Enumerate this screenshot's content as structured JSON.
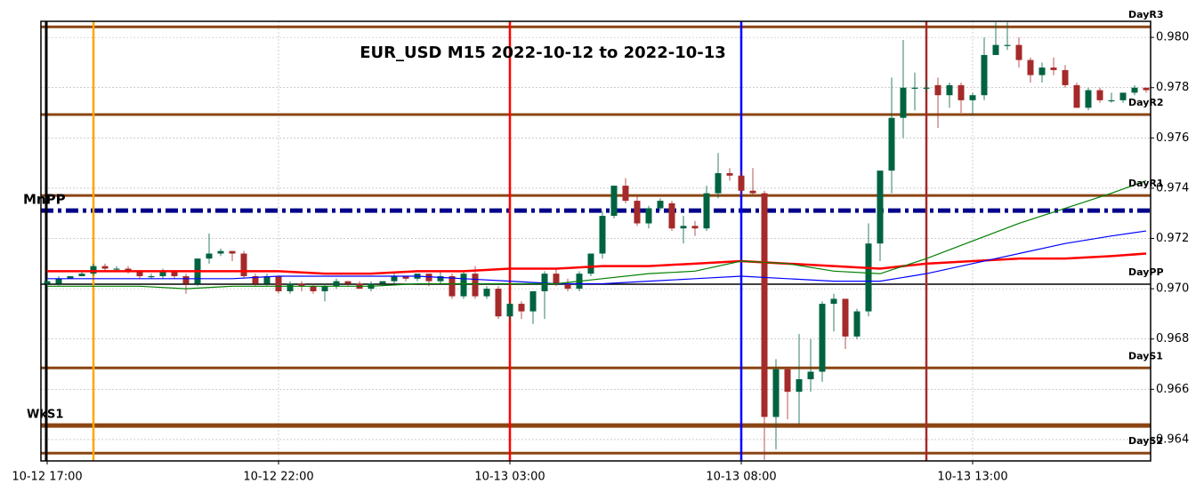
{
  "chart_data": {
    "type": "candlestick",
    "title": "EUR_USD M15 2022-10-12 to 2022-10-13",
    "x": [
      "10-12 17:00",
      "10-12 17:15",
      "10-12 17:30",
      "10-12 17:45",
      "10-12 18:00",
      "10-12 18:15",
      "10-12 18:30",
      "10-12 18:45",
      "10-12 19:00",
      "10-12 19:15",
      "10-12 19:30",
      "10-12 19:45",
      "10-12 20:00",
      "10-12 20:15",
      "10-12 20:30",
      "10-12 20:45",
      "10-12 21:00",
      "10-12 21:15",
      "10-12 21:30",
      "10-12 21:45",
      "10-12 22:00",
      "10-12 22:15",
      "10-12 22:30",
      "10-12 22:45",
      "10-12 23:00",
      "10-12 23:15",
      "10-12 23:30",
      "10-12 23:45",
      "10-13 00:00",
      "10-13 00:15",
      "10-13 00:30",
      "10-13 00:45",
      "10-13 01:00",
      "10-13 01:15",
      "10-13 01:30",
      "10-13 01:45",
      "10-13 02:00",
      "10-13 02:15",
      "10-13 02:30",
      "10-13 02:45",
      "10-13 03:00",
      "10-13 03:15",
      "10-13 03:30",
      "10-13 03:45",
      "10-13 04:00",
      "10-13 04:15",
      "10-13 04:30",
      "10-13 04:45",
      "10-13 05:00",
      "10-13 05:15",
      "10-13 05:30",
      "10-13 05:45",
      "10-13 06:00",
      "10-13 06:15",
      "10-13 06:30",
      "10-13 06:45",
      "10-13 07:00",
      "10-13 07:15",
      "10-13 07:30",
      "10-13 07:45",
      "10-13 08:00",
      "10-13 08:15",
      "10-13 08:30",
      "10-13 08:45",
      "10-13 09:00",
      "10-13 09:15",
      "10-13 09:30",
      "10-13 09:45",
      "10-13 10:00",
      "10-13 10:15",
      "10-13 10:30",
      "10-13 10:45",
      "10-13 11:00",
      "10-13 11:15",
      "10-13 11:30",
      "10-13 11:45",
      "10-13 12:00",
      "10-13 12:15",
      "10-13 12:30",
      "10-13 12:45",
      "10-13 13:00",
      "10-13 13:15",
      "10-13 13:30",
      "10-13 13:45",
      "10-13 14:00",
      "10-13 14:15",
      "10-13 14:30",
      "10-13 14:45",
      "10-13 15:00",
      "10-13 15:15",
      "10-13 15:30",
      "10-13 15:45",
      "10-13 16:00",
      "10-13 16:15",
      "10-13 16:30",
      "10-13 16:45"
    ],
    "open": [
      0.9702,
      0.9702,
      0.9704,
      0.9705,
      0.9706,
      0.9709,
      0.9708,
      0.9708,
      0.9707,
      0.9705,
      0.9705,
      0.9707,
      0.9705,
      0.9702,
      0.9712,
      0.9714,
      0.9715,
      0.9714,
      0.9705,
      0.9702,
      0.9705,
      0.9699,
      0.9702,
      0.9701,
      0.9699,
      0.9701,
      0.9703,
      0.9702,
      0.97,
      0.9702,
      0.9703,
      0.9705,
      0.9704,
      0.9706,
      0.9703,
      0.9705,
      0.9697,
      0.9706,
      0.9697,
      0.97,
      0.9689,
      0.9694,
      0.9691,
      0.9699,
      0.9706,
      0.9702,
      0.97,
      0.9706,
      0.9714,
      0.9729,
      0.9741,
      0.9735,
      0.9726,
      0.9732,
      0.9734,
      0.9724,
      0.9725,
      0.9724,
      0.9738,
      0.9746,
      0.9745,
      0.9739,
      0.9738,
      0.9649,
      0.9668,
      0.9659,
      0.9664,
      0.9667,
      0.9694,
      0.9696,
      0.9681,
      0.9691,
      0.9718,
      0.9747,
      0.9768,
      0.978,
      0.978,
      0.9781,
      0.9777,
      0.9781,
      0.9775,
      0.9777,
      0.9793,
      0.9797,
      0.9797,
      0.9791,
      0.9785,
      0.9788,
      0.9787,
      0.9781,
      0.9772,
      0.9779,
      0.9775,
      0.9775,
      0.9778,
      0.978
    ],
    "high": [
      0.9704,
      0.9705,
      0.9705,
      0.9707,
      0.971,
      0.971,
      0.9709,
      0.9709,
      0.9707,
      0.9706,
      0.9708,
      0.9707,
      0.9706,
      0.9712,
      0.9722,
      0.9716,
      0.9715,
      0.9715,
      0.9706,
      0.9706,
      0.9705,
      0.9703,
      0.9703,
      0.9702,
      0.9702,
      0.9704,
      0.9703,
      0.9703,
      0.9703,
      0.9703,
      0.9706,
      0.9705,
      0.9706,
      0.9706,
      0.9707,
      0.9706,
      0.9707,
      0.9709,
      0.9701,
      0.9701,
      0.9695,
      0.9695,
      0.9699,
      0.9707,
      0.9708,
      0.9704,
      0.9707,
      0.9714,
      0.9731,
      0.9741,
      0.9744,
      0.9737,
      0.9733,
      0.9736,
      0.9735,
      0.9729,
      0.9727,
      0.9741,
      0.9754,
      0.9748,
      0.9747,
      0.9748,
      0.9739,
      0.9672,
      0.9669,
      0.9682,
      0.968,
      0.9695,
      0.9698,
      0.9696,
      0.9692,
      0.9726,
      0.9747,
      0.9784,
      0.9799,
      0.9786,
      0.9783,
      0.9784,
      0.9782,
      0.9782,
      0.9778,
      0.98,
      0.9806,
      0.9806,
      0.98,
      0.9792,
      0.979,
      0.9792,
      0.9789,
      0.9782,
      0.978,
      0.978,
      0.9778,
      0.9778,
      0.9781,
      0.978
    ],
    "low": [
      0.9701,
      0.9701,
      0.9704,
      0.9705,
      0.9705,
      0.9707,
      0.9707,
      0.9706,
      0.9704,
      0.9704,
      0.9704,
      0.9704,
      0.9698,
      0.9701,
      0.971,
      0.9713,
      0.9711,
      0.9704,
      0.9701,
      0.9701,
      0.9698,
      0.9698,
      0.9699,
      0.9698,
      0.9695,
      0.97,
      0.9701,
      0.97,
      0.9699,
      0.9701,
      0.9702,
      0.9703,
      0.9703,
      0.9701,
      0.9702,
      0.9696,
      0.9696,
      0.9696,
      0.9696,
      0.9688,
      0.9687,
      0.9688,
      0.9686,
      0.9688,
      0.9701,
      0.9699,
      0.9699,
      0.9705,
      0.9712,
      0.9728,
      0.9734,
      0.9725,
      0.9724,
      0.9731,
      0.9723,
      0.9718,
      0.9721,
      0.9723,
      0.9736,
      0.9743,
      0.9737,
      0.9737,
      0.9632,
      0.9636,
      0.9648,
      0.9646,
      0.9659,
      0.9663,
      0.9683,
      0.9676,
      0.968,
      0.9689,
      0.9711,
      0.9738,
      0.976,
      0.9771,
      0.9778,
      0.9764,
      0.9772,
      0.977,
      0.9769,
      0.9775,
      0.9793,
      0.9795,
      0.9788,
      0.9782,
      0.9782,
      0.9785,
      0.978,
      0.9772,
      0.9771,
      0.9774,
      0.9774,
      0.9774,
      0.9777,
      0.9778
    ],
    "close": [
      0.9703,
      0.9704,
      0.9705,
      0.9706,
      0.9709,
      0.9708,
      0.9708,
      0.9707,
      0.9705,
      0.9705,
      0.9707,
      0.9705,
      0.9702,
      0.9712,
      0.9714,
      0.9715,
      0.9714,
      0.9705,
      0.9702,
      0.9705,
      0.9699,
      0.9702,
      0.9701,
      0.9699,
      0.9701,
      0.9703,
      0.9702,
      0.97,
      0.9702,
      0.9703,
      0.9705,
      0.9704,
      0.9706,
      0.9703,
      0.9705,
      0.9697,
      0.9706,
      0.9697,
      0.97,
      0.9689,
      0.9694,
      0.9691,
      0.9699,
      0.9706,
      0.9702,
      0.97,
      0.9706,
      0.9714,
      0.9729,
      0.9741,
      0.9735,
      0.9726,
      0.9732,
      0.9735,
      0.9724,
      0.9725,
      0.9724,
      0.9738,
      0.9746,
      0.9745,
      0.9739,
      0.9738,
      0.9649,
      0.9668,
      0.9659,
      0.9664,
      0.9667,
      0.9694,
      0.9696,
      0.9681,
      0.9691,
      0.9718,
      0.9747,
      0.9768,
      0.978,
      0.978,
      0.978,
      0.9777,
      0.9781,
      0.9775,
      0.9777,
      0.9793,
      0.9797,
      0.9797,
      0.9791,
      0.9785,
      0.9788,
      0.9787,
      0.9781,
      0.9772,
      0.9779,
      0.9775,
      0.9775,
      0.9778,
      0.978,
      0.9779
    ],
    "up_color": "#006340",
    "down_color": "#a52a2a",
    "lines": [
      {
        "color": "#ff0000",
        "width": 2.5,
        "x": [
          "10-12 17:00",
          "10-12 18:00",
          "10-12 19:00",
          "10-12 20:00",
          "10-12 21:00",
          "10-12 22:00",
          "10-12 23:00",
          "10-13 00:00",
          "10-13 01:00",
          "10-13 02:00",
          "10-13 03:00",
          "10-13 04:00",
          "10-13 05:00",
          "10-13 06:00",
          "10-13 07:00",
          "10-13 08:00",
          "10-13 09:00",
          "10-13 10:00",
          "10-13 11:00",
          "10-13 12:00",
          "10-13 13:00",
          "10-13 14:00",
          "10-13 15:00",
          "10-13 16:00",
          "10-13 16:45"
        ],
        "values": [
          0.9707,
          0.9707,
          0.9707,
          0.9707,
          0.9707,
          0.9707,
          0.9706,
          0.9706,
          0.9707,
          0.9707,
          0.9708,
          0.9708,
          0.9709,
          0.9709,
          0.971,
          0.9711,
          0.971,
          0.9709,
          0.9708,
          0.971,
          0.9711,
          0.9712,
          0.9712,
          0.9713,
          0.9714
        ]
      },
      {
        "color": "#0000ff",
        "width": 1.2,
        "x": [
          "10-12 17:00",
          "10-12 18:00",
          "10-12 19:00",
          "10-12 20:00",
          "10-12 21:00",
          "10-12 22:00",
          "10-12 23:00",
          "10-13 00:00",
          "10-13 01:00",
          "10-13 02:00",
          "10-13 03:00",
          "10-13 04:00",
          "10-13 05:00",
          "10-13 06:00",
          "10-13 07:00",
          "10-13 08:00",
          "10-13 09:00",
          "10-13 10:00",
          "10-13 11:00",
          "10-13 12:00",
          "10-13 13:00",
          "10-13 14:00",
          "10-13 15:00",
          "10-13 16:00",
          "10-13 16:45"
        ],
        "values": [
          0.9704,
          0.9704,
          0.9704,
          0.9704,
          0.9704,
          0.9705,
          0.9705,
          0.9705,
          0.9705,
          0.9704,
          0.9703,
          0.9702,
          0.9702,
          0.9703,
          0.9704,
          0.9705,
          0.9704,
          0.9703,
          0.9703,
          0.9706,
          0.971,
          0.9714,
          0.9718,
          0.9721,
          0.9723
        ]
      },
      {
        "color": "#008000",
        "width": 1.2,
        "x": [
          "10-12 17:00",
          "10-12 18:00",
          "10-12 19:00",
          "10-12 20:00",
          "10-12 21:00",
          "10-12 22:00",
          "10-12 23:00",
          "10-13 00:00",
          "10-13 01:00",
          "10-13 02:00",
          "10-13 03:00",
          "10-13 04:00",
          "10-13 05:00",
          "10-13 06:00",
          "10-13 07:00",
          "10-13 08:00",
          "10-13 09:00",
          "10-13 10:00",
          "10-13 11:00",
          "10-13 12:00",
          "10-13 13:00",
          "10-13 14:00",
          "10-13 15:00",
          "10-13 16:00",
          "10-13 16:45"
        ],
        "values": [
          0.9701,
          0.9701,
          0.9701,
          0.97,
          0.9701,
          0.9701,
          0.9701,
          0.9701,
          0.9702,
          0.9702,
          0.9702,
          0.9702,
          0.9704,
          0.9706,
          0.9707,
          0.9711,
          0.971,
          0.9707,
          0.9706,
          0.9712,
          0.9719,
          0.9726,
          0.9732,
          0.9738,
          0.9743
        ]
      }
    ],
    "levels": [
      {
        "label": "DayR3",
        "value": 0.98042,
        "color": "#8b4513",
        "width": 3,
        "dash": "solid",
        "label_side": "right"
      },
      {
        "label": "DayR2",
        "value": 0.97693,
        "color": "#8b4513",
        "width": 3,
        "dash": "solid",
        "label_side": "right"
      },
      {
        "label": "DayR1",
        "value": 0.97371,
        "color": "#8b4513",
        "width": 3,
        "dash": "solid",
        "label_side": "right"
      },
      {
        "label": "DayPP",
        "value": 0.97018,
        "color": "#000000",
        "width": 1.5,
        "dash": "solid",
        "label_side": "right"
      },
      {
        "label": "DayS1",
        "value": 0.96685,
        "color": "#8b4513",
        "width": 3,
        "dash": "solid",
        "label_side": "right"
      },
      {
        "label": "DayS2",
        "value": 0.96346,
        "color": "#8b4513",
        "width": 3,
        "dash": "solid",
        "label_side": "right"
      },
      {
        "label": "WkS1",
        "value": 0.96456,
        "color": "#8b4513",
        "width": 5,
        "dash": "solid",
        "label_side": "left"
      },
      {
        "label": "MnPP",
        "value": 0.97311,
        "color": "#00008b",
        "width": 5,
        "dash": "dashdot",
        "label_side": "left"
      }
    ],
    "vlines": [
      {
        "x": "10-12 17:00",
        "color": "#000000"
      },
      {
        "x": "10-12 18:00",
        "color": "#ffa500"
      },
      {
        "x": "10-13 03:00",
        "color": "#ff0000"
      },
      {
        "x": "10-13 08:00",
        "color": "#0000ff"
      },
      {
        "x": "10-13 12:00",
        "color": "#a52a2a"
      }
    ],
    "xticks": [
      "10-12 17:00",
      "10-12 22:00",
      "10-13 03:00",
      "10-13 08:00",
      "10-13 13:00"
    ],
    "ylim": [
      0.96315,
      0.98064
    ],
    "yticks": [
      0.964,
      0.966,
      0.968,
      {
        "value": 0.97,
        "label": "0.970"
      },
      0.972,
      0.974,
      0.976,
      0.978,
      {
        "value": 0.98,
        "label": "0.980"
      }
    ],
    "grid": true
  }
}
